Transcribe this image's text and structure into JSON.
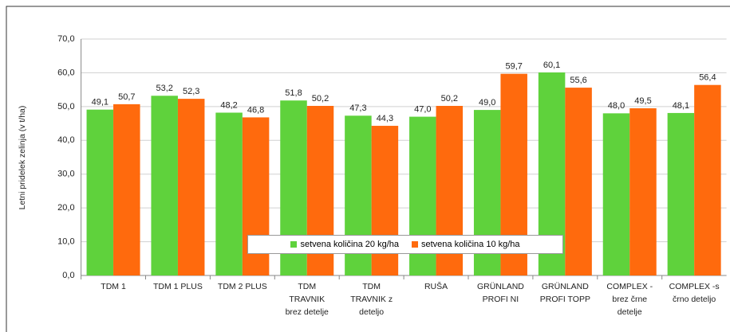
{
  "chart_data": {
    "type": "bar",
    "y_axis_label": "Letni pridelek zelinja (v t/ha)",
    "categories": [
      "TDM 1",
      "TDM 1 PLUS",
      "TDM 2 PLUS",
      "TDM\nTRAVNIK\nbrez detelje",
      "TDM\nTRAVNIK z\ndeteljo",
      "RUŠA",
      "GRÜNLAND\nPROFI NI",
      "GRÜNLAND\nPROFI TOPP",
      "COMPLEX -\nbrez črne\ndetelje",
      "COMPLEX -s\nčrno deteljo"
    ],
    "series": [
      {
        "name": "setvena količina 20 kg/ha",
        "color": "#5fd23c",
        "values": [
          49.1,
          53.2,
          48.2,
          51.8,
          47.3,
          47.0,
          49.0,
          60.1,
          48.0,
          48.1
        ],
        "value_labels": [
          "49,1",
          "53,2",
          "48,2",
          "51,8",
          "47,3",
          "47,0",
          "49,0",
          "60,1",
          "48,0",
          "48,1"
        ]
      },
      {
        "name": "setvena količina 10 kg/ha",
        "color": "#ff6a0d",
        "values": [
          50.7,
          52.3,
          46.8,
          50.2,
          44.3,
          50.2,
          59.7,
          55.6,
          49.5,
          56.4
        ],
        "value_labels": [
          "50,7",
          "52,3",
          "46,8",
          "50,2",
          "44,3",
          "50,2",
          "59,7",
          "55,6",
          "49,5",
          "56,4"
        ]
      }
    ],
    "ylim": [
      0,
      70
    ],
    "yticks": [
      {
        "value": 0,
        "label": "0,0"
      },
      {
        "value": 10,
        "label": "10,0"
      },
      {
        "value": 20,
        "label": "20,0"
      },
      {
        "value": 30,
        "label": "30,0"
      },
      {
        "value": 40,
        "label": "40,0"
      },
      {
        "value": 50,
        "label": "50,0"
      },
      {
        "value": 60,
        "label": "60,0"
      },
      {
        "value": 70,
        "label": "70,0"
      }
    ],
    "grid": true,
    "legend": "bottom-center"
  }
}
